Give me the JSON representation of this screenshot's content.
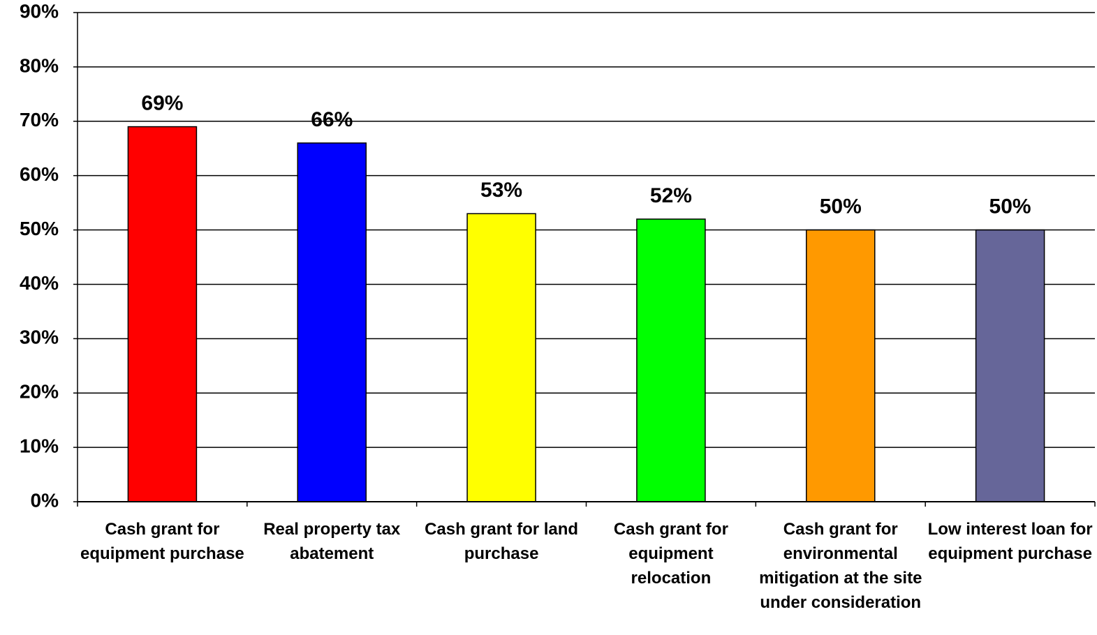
{
  "chart_data": {
    "type": "bar",
    "categories": [
      "Cash grant for equipment purchase",
      "Real property tax abatement",
      "Cash grant for land purchase",
      "Cash grant for equipment relocation",
      "Cash grant for environmental mitigation at the site under consideration",
      "Low interest loan for equipment purchase"
    ],
    "values": [
      69,
      66,
      53,
      52,
      50,
      50
    ],
    "value_labels": [
      "69%",
      "66%",
      "53%",
      "52%",
      "50%",
      "50%"
    ],
    "colors": [
      "#ff0000",
      "#0000ff",
      "#ffff00",
      "#00ff00",
      "#ff9900",
      "#666699"
    ],
    "ylim": [
      0,
      90
    ],
    "yticks": [
      {
        "value": 0,
        "label": "0%"
      },
      {
        "value": 10,
        "label": "10%"
      },
      {
        "value": 20,
        "label": "20%"
      },
      {
        "value": 30,
        "label": "30%"
      },
      {
        "value": 40,
        "label": "40%"
      },
      {
        "value": 50,
        "label": "50%"
      },
      {
        "value": 60,
        "label": "60%"
      },
      {
        "value": 70,
        "label": "70%"
      },
      {
        "value": 80,
        "label": "80%"
      },
      {
        "value": 90,
        "label": "90%"
      }
    ],
    "grid": true
  }
}
